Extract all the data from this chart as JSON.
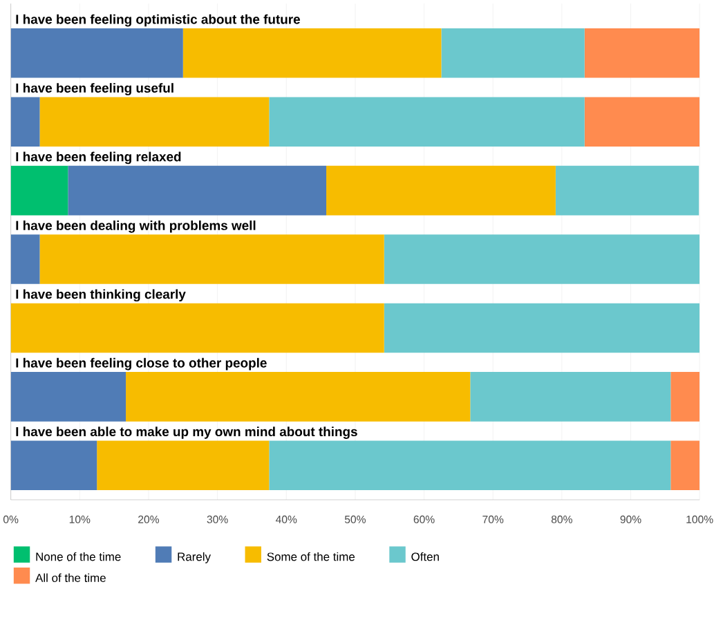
{
  "chart_data": {
    "type": "bar",
    "orientation": "horizontal",
    "stacked": true,
    "grid": "x",
    "legend": "bottom",
    "categories": [
      "I have been feeling optimistic about the future",
      "I have been feeling useful",
      "I have been feeling relaxed",
      "I have been dealing with problems well",
      "I have been thinking clearly",
      "I have been feeling close to other people",
      "I have been able to make up my own mind about things"
    ],
    "series": [
      {
        "name": "None of the time",
        "color": "#00bf6f",
        "values": [
          0,
          0,
          8.3,
          0,
          0,
          0,
          0
        ]
      },
      {
        "name": "Rarely",
        "color": "#507cb6",
        "values": [
          25,
          4.2,
          37.5,
          4.2,
          0,
          16.7,
          12.5
        ]
      },
      {
        "name": "Some of the time",
        "color": "#f7bc00",
        "values": [
          37.5,
          33.3,
          33.3,
          50,
          54.2,
          50,
          25
        ]
      },
      {
        "name": "Often",
        "color": "#6bc8cd",
        "values": [
          20.8,
          45.8,
          20.8,
          45.8,
          45.8,
          29.1,
          58.3
        ]
      },
      {
        "name": "All of the time",
        "color": "#ff8b4f",
        "values": [
          16.7,
          16.7,
          0,
          0,
          0,
          4.2,
          4.2
        ]
      }
    ],
    "xlim": [
      0,
      100
    ],
    "xticks": [
      {
        "value": 0,
        "label": "0%"
      },
      {
        "value": 10,
        "label": "10%"
      },
      {
        "value": 20,
        "label": "20%"
      },
      {
        "value": 30,
        "label": "30%"
      },
      {
        "value": 40,
        "label": "40%"
      },
      {
        "value": 50,
        "label": "50%"
      },
      {
        "value": 60,
        "label": "60%"
      },
      {
        "value": 70,
        "label": "70%"
      },
      {
        "value": 80,
        "label": "80%"
      },
      {
        "value": 90,
        "label": "90%"
      },
      {
        "value": 100,
        "label": "100%"
      }
    ]
  }
}
